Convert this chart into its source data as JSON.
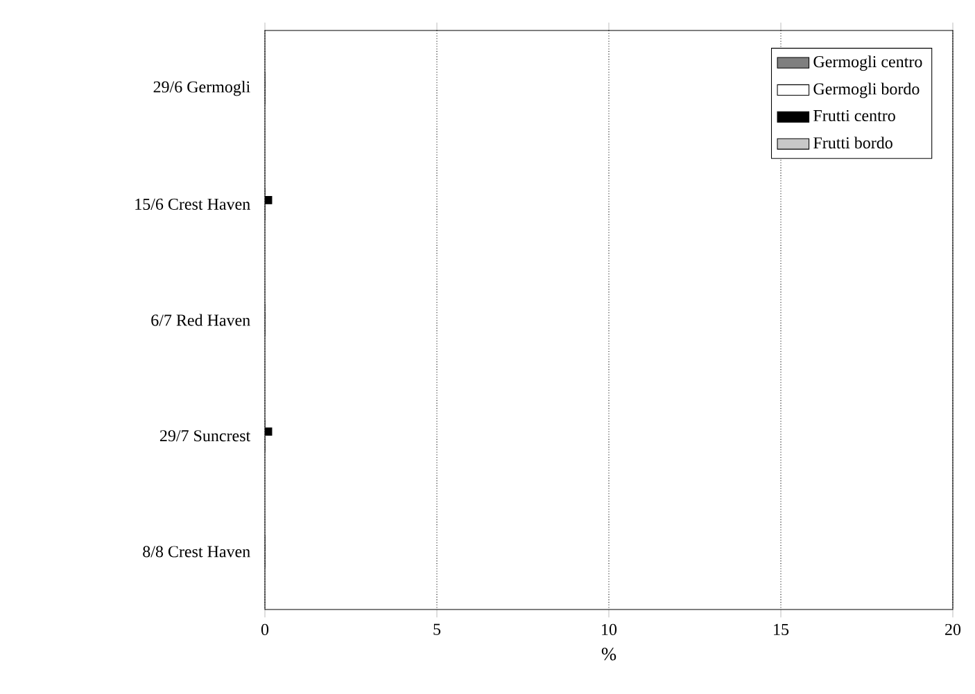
{
  "chart_data": {
    "type": "bar",
    "orientation": "horizontal",
    "xlabel": "%",
    "categories": [
      "29/6 Germogli",
      "15/6 Crest Haven",
      "6/7 Red Haven",
      "29/7 Suncrest",
      "8/8 Crest Haven"
    ],
    "series": [
      {
        "name": "Germogli centro",
        "color": "#7f7f7f",
        "values": [
          0,
          0,
          0,
          0,
          0
        ]
      },
      {
        "name": "Germogli bordo",
        "color": "#ffffff",
        "values": [
          0,
          0,
          0,
          0,
          0
        ]
      },
      {
        "name": "Frutti centro",
        "color": "#000000",
        "values": [
          0,
          0.2,
          0,
          0.2,
          0
        ]
      },
      {
        "name": "Frutti bordo",
        "color": "#c8c8c8",
        "values": [
          0,
          0,
          0,
          0,
          0
        ]
      }
    ],
    "xlim": [
      0,
      20
    ],
    "xticks": [
      0,
      5,
      10,
      15,
      20
    ],
    "grid": "x",
    "legend": "top right"
  }
}
